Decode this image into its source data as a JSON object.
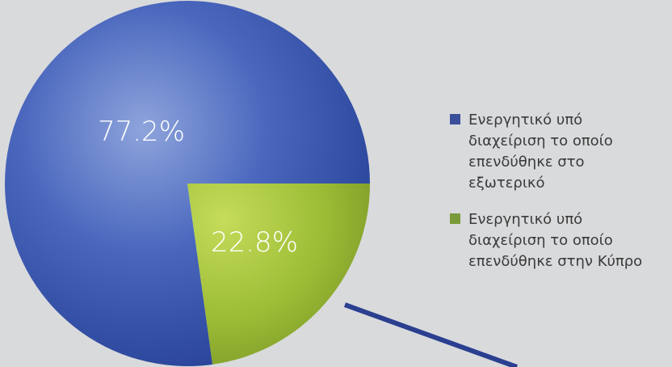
{
  "chart_data": {
    "type": "pie",
    "slices": [
      {
        "label": "Ενεργητικό υπό διαχείριση το οποίο επενδύθηκε στο εξωτερικό",
        "value": 77.2,
        "value_label": "77.2%",
        "color": "#2d4a9e"
      },
      {
        "label": "Ενεργητικό υπό διαχείριση το οποίο επενδύθηκε στην Κύπρο",
        "value": 22.8,
        "value_label": "22.8%",
        "color": "#8fb23a"
      }
    ],
    "legend": {
      "position": "right",
      "entries": [
        {
          "lines": [
            "Ενεργητικό υπό",
            "διαχείριση το οποίο",
            "επενδύθηκε στο",
            "εξωτερικό"
          ],
          "color": "#3a4f9a"
        },
        {
          "lines": [
            "Ενεργητικό υπό",
            "διαχείριση το οποίο",
            "επενδύθηκε στην Κύπρο"
          ],
          "color": "#7a9a3a"
        }
      ]
    },
    "connector_color": "#2a3f8f"
  }
}
